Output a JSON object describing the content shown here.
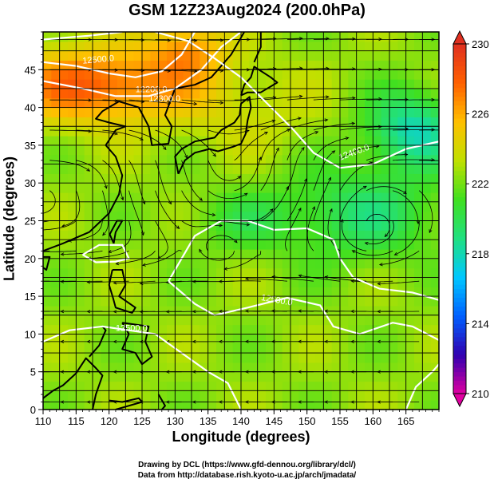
{
  "title": "GSM 12Z23Aug2024 (200.0hPa)",
  "xlabel": "Longitude (degrees)",
  "ylabel": "Latitude  (degrees)",
  "credits": [
    "Drawing by DCL (https://www.gfd-dennou.org/library/dcl/)",
    "Data from http://database.rish.kyoto-u.ac.jp/arch/jmadata/"
  ],
  "chart_data": {
    "type": "heatmap",
    "x_range": [
      110,
      170
    ],
    "y_range": [
      0,
      50
    ],
    "x_ticks": [
      "110",
      "115",
      "120",
      "125",
      "130",
      "135",
      "140",
      "145",
      "150",
      "155",
      "160",
      "165"
    ],
    "y_ticks": [
      "0",
      "5",
      "10",
      "15",
      "20",
      "25",
      "30",
      "35",
      "40",
      "45"
    ],
    "grid": true,
    "colorbar": {
      "range": [
        210,
        230
      ],
      "ticks": [
        "210",
        "214",
        "218",
        "222",
        "226",
        "230"
      ],
      "colors": [
        "#e000a0",
        "#3000b0",
        "#0060ff",
        "#00c8ff",
        "#20e080",
        "#40e020",
        "#c0e000",
        "#ffc000",
        "#ff6000",
        "#e03020"
      ]
    },
    "contour_labels": [
      "12500.0",
      "12200.0",
      "12300.0",
      "12400.0",
      "12500.0",
      "12500.0"
    ],
    "contour_color": "#ffffff",
    "overlay": "streamlines"
  }
}
